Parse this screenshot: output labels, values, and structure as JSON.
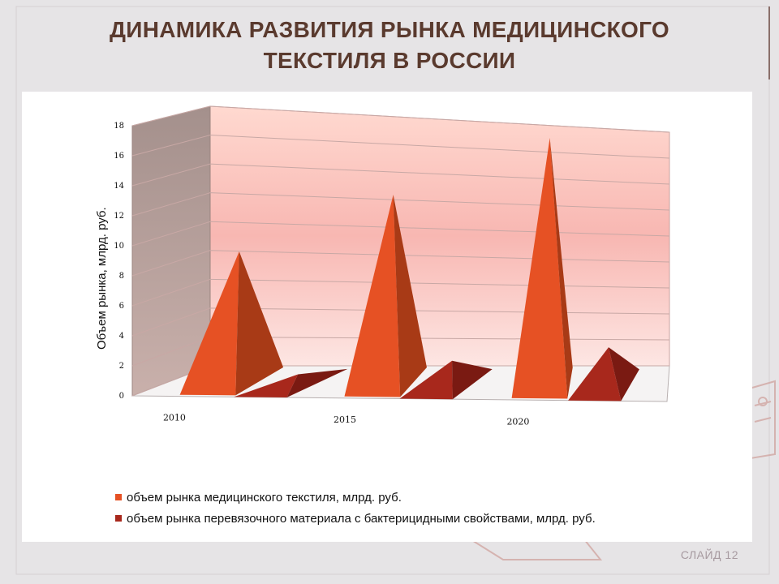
{
  "slide": {
    "title_line1": "ДИНАМИКА РАЗВИТИЯ РЫНКА МЕДИЦИНСКОГО",
    "title_line2": "ТЕКСТИЛЯ В РОССИИ",
    "number": "СЛАЙД 12"
  },
  "colors": {
    "series1": "#e65124",
    "series2": "#a8281c",
    "title": "#5a3a2e"
  },
  "chart_data": {
    "type": "bar",
    "style": "3d-pyramid",
    "categories": [
      "2010",
      "2015",
      "2020"
    ],
    "series": [
      {
        "name": "объем рынка медицинского текстиля, млрд. руб.",
        "values": [
          9,
          13,
          17
        ]
      },
      {
        "name": "объем рынка перевязочного материала с бактерицидными свойствами, млрд. руб.",
        "values": [
          0.5,
          1.5,
          2.5
        ]
      }
    ],
    "ylabel": "Объем рынка, млрд. руб.",
    "xlabel": "",
    "ylim": [
      0,
      18
    ],
    "yticks": [
      0,
      2,
      4,
      6,
      8,
      10,
      12,
      14,
      16,
      18
    ],
    "grid": true,
    "legend": "bottom"
  }
}
